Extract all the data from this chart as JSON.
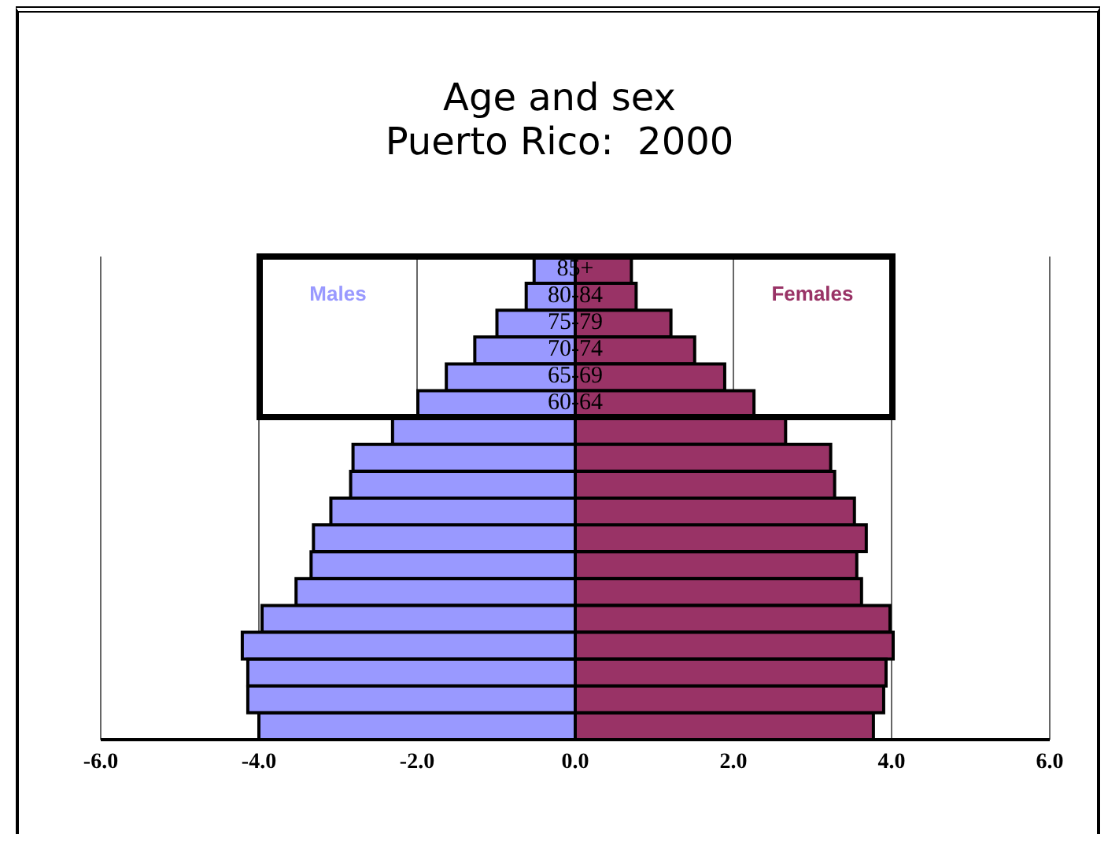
{
  "chart_data": {
    "type": "bar",
    "title": "Age and sex",
    "subtitle": "Puerto Rico:  2000",
    "orientation": "horizontal",
    "stacked": true,
    "categories": [
      "85+",
      "80-84",
      "75-79",
      "70-74",
      "65-69",
      "60-64",
      null,
      null,
      null,
      null,
      null,
      null,
      null,
      null,
      null,
      null,
      null,
      null
    ],
    "series": [
      {
        "name": "Males",
        "color": "#9999ff",
        "values": [
          -0.52,
          -0.62,
          -0.99,
          -1.27,
          -1.63,
          -1.99,
          -2.31,
          -2.81,
          -2.84,
          -3.09,
          -3.31,
          -3.34,
          -3.53,
          -3.96,
          -4.21,
          -4.14,
          -4.14,
          -4.0
        ]
      },
      {
        "name": "Females",
        "color": "#993366",
        "values": [
          0.71,
          0.77,
          1.21,
          1.51,
          1.89,
          2.26,
          2.66,
          3.23,
          3.28,
          3.53,
          3.68,
          3.56,
          3.62,
          3.98,
          4.02,
          3.93,
          3.9,
          3.77
        ]
      }
    ],
    "xlim": [
      -6,
      6
    ],
    "xticks": [
      {
        "value": -6,
        "label": "-6.0"
      },
      {
        "value": -4,
        "label": "-4.0"
      },
      {
        "value": -2,
        "label": "-2.0"
      },
      {
        "value": 0,
        "label": "0.0"
      },
      {
        "value": 2,
        "label": "2.0"
      },
      {
        "value": 4,
        "label": "4.0"
      },
      {
        "value": 6,
        "label": "6.0"
      }
    ],
    "grid": "x"
  }
}
